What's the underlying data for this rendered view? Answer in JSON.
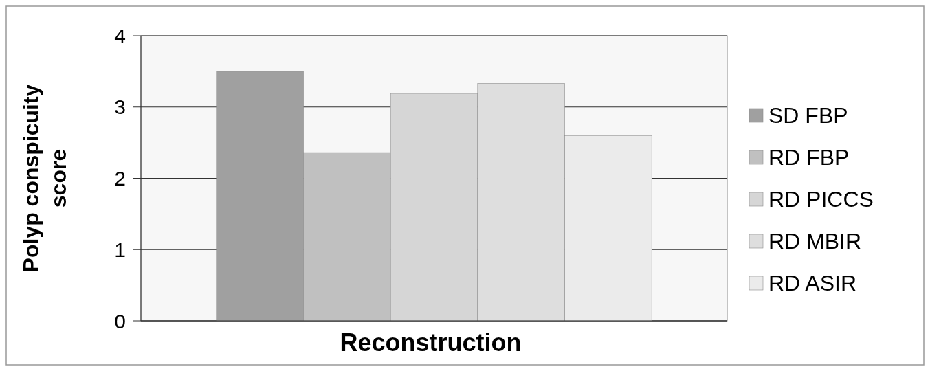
{
  "chart_data": {
    "type": "bar",
    "xlabel": "Reconstruction",
    "ylabel": "Polyp conspicuity score",
    "categories": [
      null
    ],
    "series": [
      {
        "name": "SD FBP",
        "color": "#a0a0a0",
        "values": [
          3.5
        ]
      },
      {
        "name": "RD FBP",
        "color": "#c0c0c0",
        "values": [
          2.36
        ]
      },
      {
        "name": "RD PICCS",
        "color": "#d6d6d6",
        "values": [
          3.19
        ]
      },
      {
        "name": "RD MBIR",
        "color": "#dedede",
        "values": [
          3.33
        ]
      },
      {
        "name": "RD ASIR",
        "color": "#ebebeb",
        "values": [
          2.6
        ]
      }
    ],
    "ylim": [
      0,
      4
    ],
    "yticks": [
      0,
      1,
      2,
      3,
      4
    ],
    "grid": "y",
    "legend": "right"
  }
}
